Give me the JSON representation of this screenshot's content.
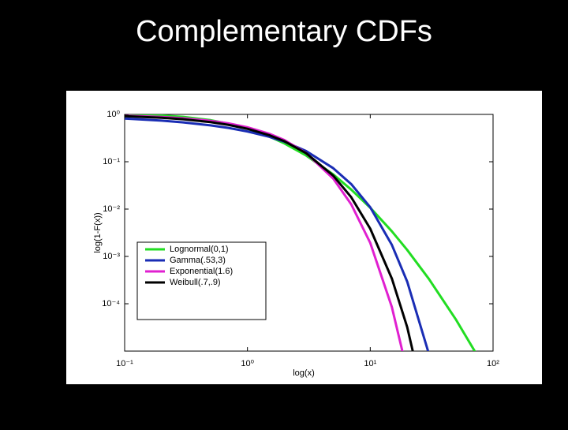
{
  "chart_data": {
    "type": "line",
    "title": "Complementary CDFs",
    "x_label": "log(x)",
    "y_label": "log(1-F(x))",
    "xscale": "log",
    "yscale": "log",
    "xlim": [
      0.1,
      100
    ],
    "ylim": [
      1e-05,
      1
    ],
    "xticks": [
      {
        "value": 0.1,
        "label": "10⁻¹"
      },
      {
        "value": 1,
        "label": "10⁰"
      },
      {
        "value": 10,
        "label": "10¹"
      },
      {
        "value": 100,
        "label": "10²"
      }
    ],
    "yticks": [
      {
        "value": 1,
        "label": "10⁰"
      },
      {
        "value": 0.1,
        "label": "10⁻¹"
      },
      {
        "value": 0.01,
        "label": "10⁻²"
      },
      {
        "value": 0.001,
        "label": "10⁻³"
      },
      {
        "value": 0.0001,
        "label": "10⁻⁴"
      }
    ],
    "grid": false,
    "legend_position": "lower left",
    "x": [
      0.1,
      0.2,
      0.3,
      0.5,
      0.7,
      1,
      1.5,
      2,
      3,
      5,
      7,
      10,
      15,
      20,
      30,
      50,
      80
    ],
    "series": [
      {
        "name": "Lognormal(0,1)",
        "color": "#22dd22",
        "values": [
          0.989,
          0.946,
          0.886,
          0.756,
          0.639,
          0.5,
          0.343,
          0.244,
          0.136,
          0.0538,
          0.0258,
          0.0107,
          0.00339,
          0.00137,
          0.000336,
          4.58e-05,
          5.9e-06
        ]
      },
      {
        "name": "Gamma(.53,3)",
        "color": "#1a2db4",
        "values": [
          0.816,
          0.738,
          0.678,
          0.588,
          0.518,
          0.436,
          0.337,
          0.265,
          0.169,
          0.073,
          0.0337,
          0.0109,
          0.00175,
          0.000293,
          8.8e-06,
          null,
          null
        ]
      },
      {
        "name": "Exponential(1.6)",
        "color": "#e020d0",
        "values": [
          0.939,
          0.882,
          0.829,
          0.732,
          0.646,
          0.535,
          0.392,
          0.287,
          0.153,
          0.0439,
          0.0126,
          0.00193,
          8.5e-05,
          3.7e-06,
          null,
          null,
          null
        ]
      },
      {
        "name": "Weibull(.7,.9)",
        "color": "#000000",
        "values": [
          0.916,
          0.848,
          0.789,
          0.687,
          0.602,
          0.497,
          0.365,
          0.271,
          0.152,
          0.0507,
          0.0178,
          0.00385,
          0.00034,
          3.2e-05,
          3.4e-07,
          null,
          null
        ]
      }
    ]
  }
}
